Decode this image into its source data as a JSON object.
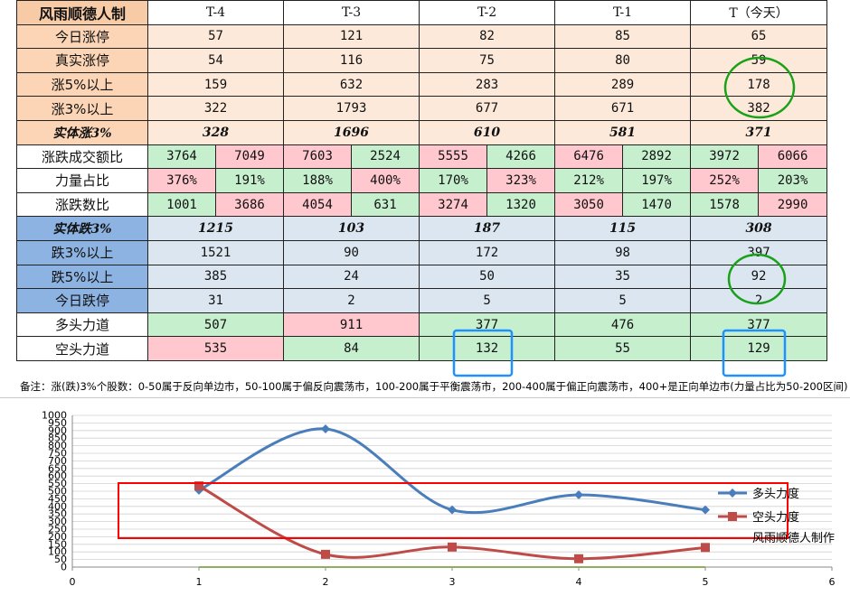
{
  "table": {
    "title": "风雨顺德人制",
    "columns": [
      "T-4",
      "T-3",
      "T-2",
      "T-1",
      "T（今天）"
    ],
    "up_rows": [
      {
        "label": "今日涨停",
        "values": [
          "57",
          "121",
          "82",
          "85",
          "65"
        ]
      },
      {
        "label": "真实涨停",
        "values": [
          "54",
          "116",
          "75",
          "80",
          "59"
        ]
      },
      {
        "label": "涨5%以上",
        "values": [
          "159",
          "632",
          "283",
          "289",
          "178"
        ]
      },
      {
        "label": "涨3%以上",
        "values": [
          "322",
          "1793",
          "677",
          "671",
          "382"
        ]
      }
    ],
    "solid_up": {
      "label": "实体涨3%",
      "values": [
        "328",
        "1696",
        "610",
        "581",
        "371"
      ]
    },
    "pair_rows": [
      {
        "label": "涨跌成交额比",
        "cells": [
          [
            "3764",
            "7049"
          ],
          [
            "7603",
            "2524"
          ],
          [
            "5555",
            "4266"
          ],
          [
            "6476",
            "2892"
          ],
          [
            "3972",
            "6066"
          ]
        ],
        "colors": [
          [
            "green",
            "pink"
          ],
          [
            "pink",
            "green"
          ],
          [
            "pink",
            "green"
          ],
          [
            "pink",
            "green"
          ],
          [
            "green",
            "pink"
          ]
        ]
      },
      {
        "label": "力量占比",
        "cells": [
          [
            "376%",
            "191%"
          ],
          [
            "188%",
            "400%"
          ],
          [
            "170%",
            "323%"
          ],
          [
            "212%",
            "197%"
          ],
          [
            "252%",
            "203%"
          ]
        ],
        "colors": [
          [
            "pink",
            "green"
          ],
          [
            "green",
            "pink"
          ],
          [
            "green",
            "pink"
          ],
          [
            "green",
            "green"
          ],
          [
            "pink",
            "green"
          ]
        ]
      },
      {
        "label": "涨跌数比",
        "cells": [
          [
            "1001",
            "3686"
          ],
          [
            "4054",
            "631"
          ],
          [
            "3274",
            "1320"
          ],
          [
            "3050",
            "1470"
          ],
          [
            "1578",
            "2990"
          ]
        ],
        "colors": [
          [
            "green",
            "pink"
          ],
          [
            "pink",
            "green"
          ],
          [
            "pink",
            "green"
          ],
          [
            "pink",
            "green"
          ],
          [
            "green",
            "pink"
          ]
        ]
      }
    ],
    "solid_down": {
      "label": "实体跌3%",
      "values": [
        "1215",
        "103",
        "187",
        "115",
        "308"
      ]
    },
    "down_rows": [
      {
        "label": "跌3%以上",
        "values": [
          "1521",
          "90",
          "172",
          "98",
          "397"
        ]
      },
      {
        "label": "跌5%以上",
        "values": [
          "385",
          "24",
          "50",
          "35",
          "92"
        ]
      },
      {
        "label": "今日跌停",
        "values": [
          "31",
          "2",
          "5",
          "5",
          "2"
        ]
      }
    ],
    "force_rows": [
      {
        "label": "多头力道",
        "values": [
          "507",
          "911",
          "377",
          "476",
          "377"
        ],
        "colors": [
          "green",
          "pink",
          "green",
          "green",
          "green"
        ]
      },
      {
        "label": "空头力道",
        "values": [
          "535",
          "84",
          "132",
          "55",
          "129"
        ],
        "colors": [
          "pink",
          "green",
          "green",
          "green",
          "green"
        ]
      }
    ],
    "note": "备注：涨(跌)3%个股数：0-50属于反向单边市，50-100属于偏反向震荡市，100-200属于平衡震荡市，200-400属于偏正向震荡市，400+是正向单边市(力量占比为50-200区间)"
  },
  "colors": {
    "bull": "#4a7ebb",
    "bear": "#be4b48",
    "highlight_circle": "#1aa11a",
    "highlight_box": "#1e90ff",
    "chart_box": "#ff0000"
  },
  "chart_data": {
    "type": "line",
    "x": [
      1,
      2,
      3,
      4,
      5
    ],
    "series": [
      {
        "name": "多头力度",
        "values": [
          507,
          911,
          377,
          476,
          377
        ],
        "color": "#4a7ebb",
        "marker": "diamond"
      },
      {
        "name": "空头力度",
        "values": [
          535,
          84,
          132,
          55,
          129
        ],
        "color": "#be4b48",
        "marker": "square"
      }
    ],
    "xlim": [
      0,
      6
    ],
    "ylim": [
      0,
      1000
    ],
    "x_ticks": [
      "0",
      "1",
      "2",
      "3",
      "4",
      "5",
      "6"
    ],
    "y_ticks": [
      "0",
      "50",
      "100",
      "150",
      "200",
      "250",
      "300",
      "350",
      "400",
      "450",
      "500",
      "550",
      "600",
      "650",
      "700",
      "750",
      "800",
      "850",
      "900",
      "950",
      "1000"
    ],
    "grid": true,
    "smooth": true,
    "legend_position": "right",
    "credit": "风雨顺德人制作"
  }
}
